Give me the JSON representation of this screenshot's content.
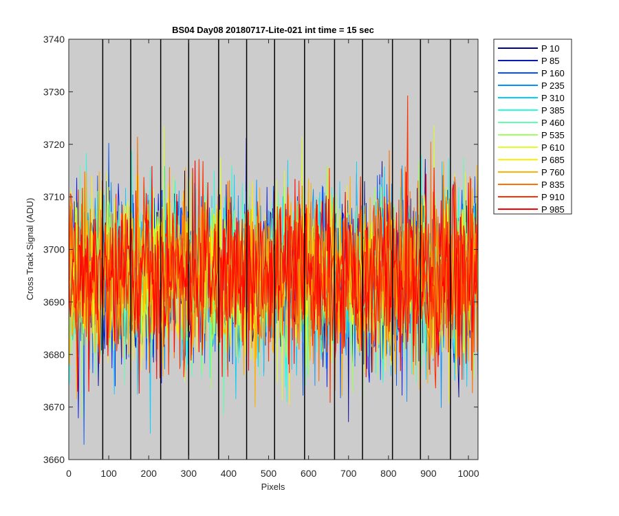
{
  "chart_data": {
    "type": "line",
    "title": "BS04 Day08 20180717-Lite-021 int time = 15 sec",
    "xlabel": "Pixels",
    "ylabel": "Cross Track Signal (ADU)",
    "xlim": [
      0,
      1024
    ],
    "ylim": [
      3660,
      3740
    ],
    "x_ticks": [
      0,
      100,
      200,
      300,
      400,
      500,
      600,
      700,
      800,
      900,
      1000
    ],
    "y_ticks": [
      3660,
      3670,
      3680,
      3690,
      3700,
      3710,
      3720,
      3730,
      3740
    ],
    "vertical_lines": [
      85,
      155,
      230,
      300,
      375,
      445,
      515,
      590,
      665,
      735,
      810,
      880,
      955
    ],
    "background_color": "#cccccc",
    "legend_position": "outside-right",
    "grid": false,
    "signal_mean": 3695,
    "signal_spread": 8,
    "series": [
      {
        "name": "P 10",
        "color": "#00008f"
      },
      {
        "name": "P 85",
        "color": "#0010ef"
      },
      {
        "name": "P 160",
        "color": "#0050ff"
      },
      {
        "name": "P 235",
        "color": "#0090ff"
      },
      {
        "name": "P 310",
        "color": "#00cfff"
      },
      {
        "name": "P 385",
        "color": "#20ffdf"
      },
      {
        "name": "P 460",
        "color": "#60ffaf"
      },
      {
        "name": "P 535",
        "color": "#9fff60"
      },
      {
        "name": "P 610",
        "color": "#dfff20"
      },
      {
        "name": "P 685",
        "color": "#ffef00"
      },
      {
        "name": "P 760",
        "color": "#ffb000"
      },
      {
        "name": "P 835",
        "color": "#ff7000"
      },
      {
        "name": "P 910",
        "color": "#ff3000"
      },
      {
        "name": "P 985",
        "color": "#ff0000"
      }
    ]
  }
}
